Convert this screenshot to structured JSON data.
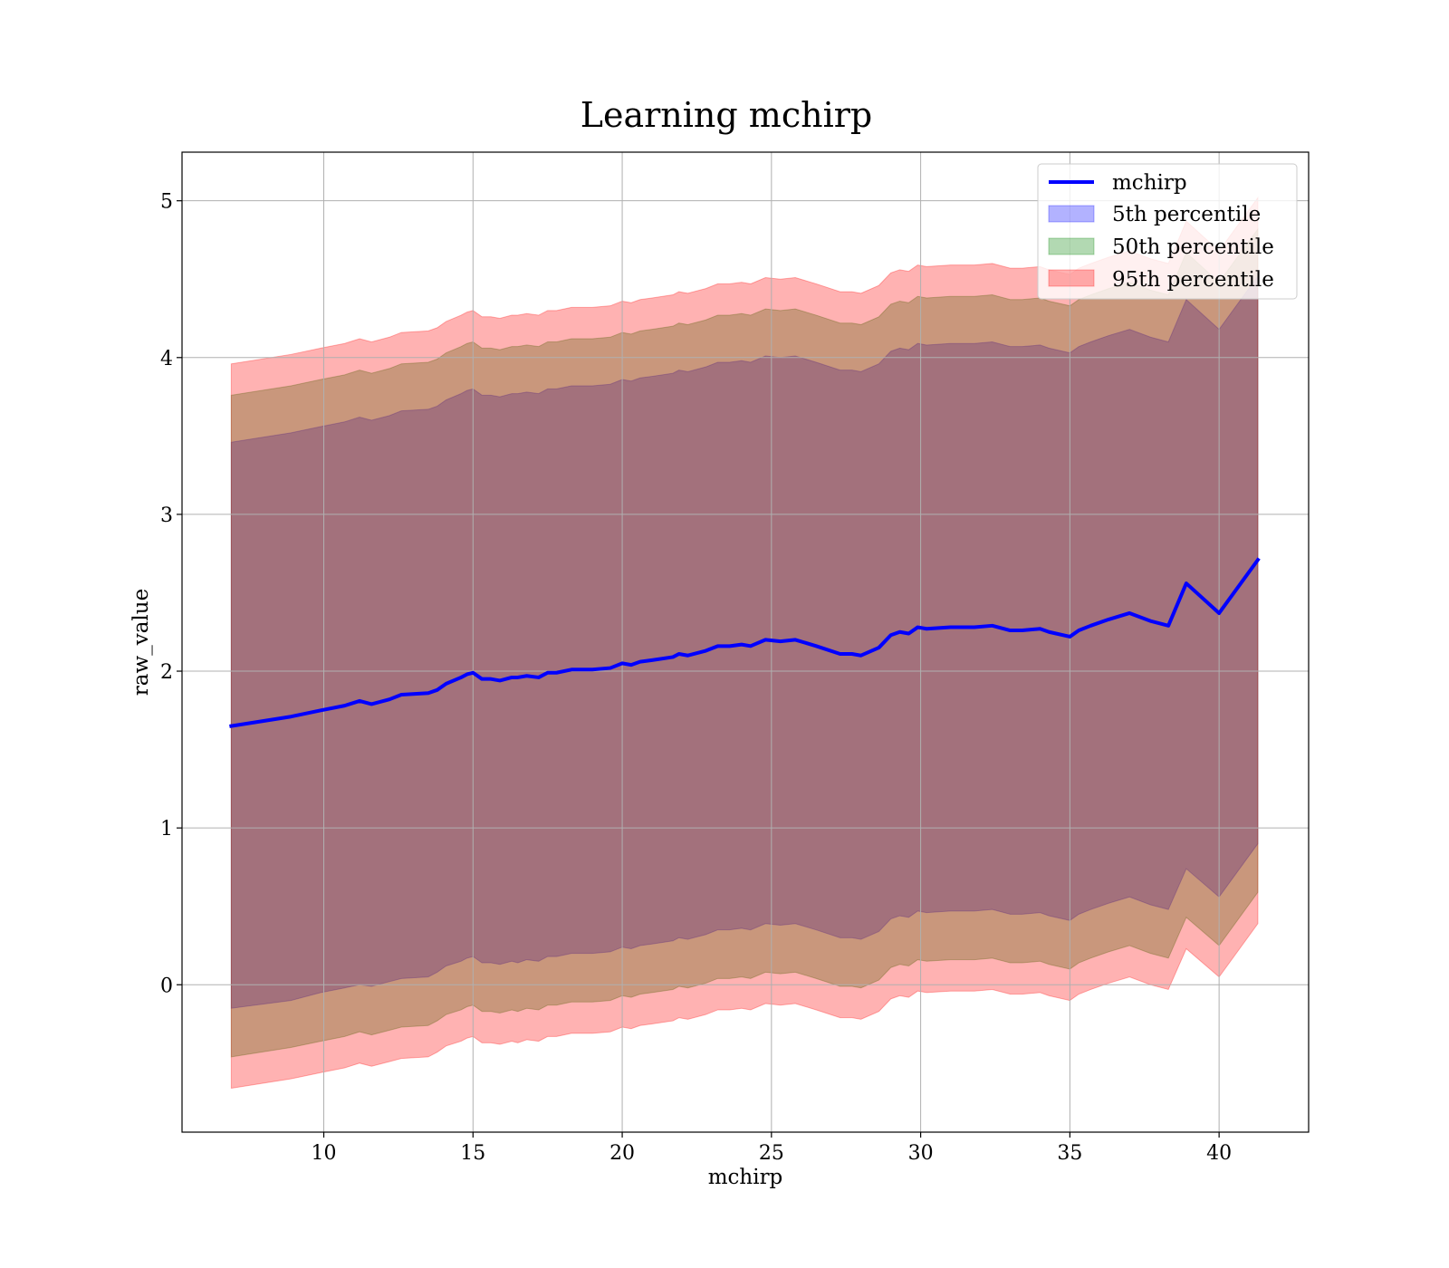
{
  "chart_data": {
    "type": "area",
    "title": "Learning mchirp",
    "xlabel": "mchirp",
    "ylabel": "raw_value",
    "xlim": [
      5.25,
      43.0
    ],
    "ylim": [
      -0.94,
      5.31
    ],
    "xticks": [
      10,
      15,
      20,
      25,
      30,
      35,
      40
    ],
    "yticks": [
      0,
      1,
      2,
      3,
      4,
      5
    ],
    "grid": true,
    "legend_position": "top-right",
    "legend": [
      "mchirp",
      "5th percentile",
      "50th percentile",
      "95th percentile"
    ],
    "colors": {
      "line": "#0000ff",
      "band_5th": "#0000ff",
      "band_50th": "#008000",
      "band_95th": "#ff0000"
    },
    "x": [
      6.9,
      8.9,
      9.9,
      10.7,
      11.2,
      11.6,
      12.2,
      12.6,
      13.5,
      13.8,
      14.1,
      14.6,
      14.8,
      15.0,
      15.3,
      15.6,
      15.9,
      16.3,
      16.5,
      16.8,
      17.2,
      17.5,
      17.8,
      18.3,
      19.0,
      19.6,
      20.0,
      20.3,
      20.6,
      21.0,
      21.7,
      21.9,
      22.2,
      22.8,
      23.2,
      23.6,
      24.0,
      24.3,
      24.8,
      25.3,
      25.8,
      26.5,
      27.3,
      27.7,
      28.0,
      28.6,
      29.0,
      29.3,
      29.6,
      29.9,
      30.2,
      31.0,
      31.8,
      32.4,
      33.0,
      33.4,
      34.0,
      34.3,
      35.0,
      35.3,
      35.7,
      36.3,
      37.0,
      37.7,
      38.3,
      38.9,
      40.0,
      41.3
    ],
    "series": [
      {
        "name": "mchirp",
        "kind": "line",
        "values": [
          1.65,
          1.71,
          1.75,
          1.78,
          1.81,
          1.79,
          1.82,
          1.85,
          1.86,
          1.88,
          1.92,
          1.96,
          1.98,
          1.99,
          1.95,
          1.95,
          1.94,
          1.96,
          1.96,
          1.97,
          1.96,
          1.99,
          1.99,
          2.01,
          2.01,
          2.02,
          2.05,
          2.04,
          2.06,
          2.07,
          2.09,
          2.11,
          2.1,
          2.13,
          2.16,
          2.16,
          2.17,
          2.16,
          2.2,
          2.19,
          2.2,
          2.16,
          2.11,
          2.11,
          2.1,
          2.15,
          2.23,
          2.25,
          2.24,
          2.28,
          2.27,
          2.28,
          2.28,
          2.29,
          2.26,
          2.26,
          2.27,
          2.25,
          2.22,
          2.26,
          2.29,
          2.33,
          2.37,
          2.32,
          2.29,
          2.56,
          2.37,
          2.71
        ]
      },
      {
        "name": "5th percentile",
        "kind": "band",
        "lower": [
          -0.15,
          -0.1,
          -0.05,
          -0.02,
          0.0,
          -0.01,
          0.02,
          0.04,
          0.05,
          0.08,
          0.12,
          0.15,
          0.17,
          0.18,
          0.14,
          0.14,
          0.13,
          0.15,
          0.14,
          0.16,
          0.15,
          0.18,
          0.18,
          0.2,
          0.2,
          0.21,
          0.24,
          0.23,
          0.25,
          0.26,
          0.28,
          0.3,
          0.29,
          0.32,
          0.35,
          0.35,
          0.36,
          0.35,
          0.39,
          0.38,
          0.39,
          0.35,
          0.3,
          0.3,
          0.29,
          0.34,
          0.42,
          0.44,
          0.43,
          0.47,
          0.46,
          0.47,
          0.47,
          0.48,
          0.45,
          0.45,
          0.46,
          0.44,
          0.41,
          0.45,
          0.48,
          0.52,
          0.56,
          0.51,
          0.48,
          0.74,
          0.56,
          0.9
        ],
        "upper": [
          3.46,
          3.52,
          3.56,
          3.59,
          3.62,
          3.6,
          3.63,
          3.66,
          3.67,
          3.69,
          3.73,
          3.77,
          3.79,
          3.8,
          3.76,
          3.76,
          3.75,
          3.77,
          3.77,
          3.78,
          3.77,
          3.8,
          3.8,
          3.82,
          3.82,
          3.83,
          3.86,
          3.85,
          3.87,
          3.88,
          3.9,
          3.92,
          3.91,
          3.94,
          3.97,
          3.97,
          3.98,
          3.97,
          4.01,
          4.0,
          4.01,
          3.97,
          3.92,
          3.92,
          3.91,
          3.96,
          4.04,
          4.06,
          4.05,
          4.09,
          4.08,
          4.09,
          4.09,
          4.1,
          4.07,
          4.07,
          4.08,
          4.06,
          4.03,
          4.07,
          4.1,
          4.14,
          4.18,
          4.13,
          4.1,
          4.37,
          4.18,
          4.52
        ]
      },
      {
        "name": "50th percentile",
        "kind": "band",
        "lower": [
          -0.46,
          -0.4,
          -0.36,
          -0.33,
          -0.3,
          -0.32,
          -0.29,
          -0.27,
          -0.26,
          -0.23,
          -0.19,
          -0.16,
          -0.14,
          -0.13,
          -0.17,
          -0.17,
          -0.18,
          -0.16,
          -0.17,
          -0.15,
          -0.16,
          -0.13,
          -0.13,
          -0.11,
          -0.11,
          -0.1,
          -0.07,
          -0.08,
          -0.06,
          -0.05,
          -0.03,
          -0.01,
          -0.02,
          0.01,
          0.04,
          0.04,
          0.05,
          0.04,
          0.08,
          0.07,
          0.08,
          0.04,
          -0.01,
          -0.01,
          -0.02,
          0.03,
          0.11,
          0.13,
          0.12,
          0.16,
          0.15,
          0.16,
          0.16,
          0.17,
          0.14,
          0.14,
          0.15,
          0.13,
          0.1,
          0.14,
          0.17,
          0.21,
          0.25,
          0.2,
          0.17,
          0.43,
          0.25,
          0.59
        ],
        "upper": [
          3.76,
          3.82,
          3.86,
          3.89,
          3.92,
          3.9,
          3.93,
          3.96,
          3.97,
          3.99,
          4.03,
          4.07,
          4.09,
          4.1,
          4.06,
          4.06,
          4.05,
          4.07,
          4.07,
          4.08,
          4.07,
          4.1,
          4.1,
          4.12,
          4.12,
          4.13,
          4.16,
          4.15,
          4.17,
          4.18,
          4.2,
          4.22,
          4.21,
          4.24,
          4.27,
          4.27,
          4.28,
          4.27,
          4.31,
          4.3,
          4.31,
          4.27,
          4.22,
          4.22,
          4.21,
          4.26,
          4.34,
          4.36,
          4.35,
          4.39,
          4.38,
          4.39,
          4.39,
          4.4,
          4.37,
          4.37,
          4.38,
          4.36,
          4.33,
          4.37,
          4.4,
          4.44,
          4.48,
          4.43,
          4.4,
          4.67,
          4.48,
          4.82
        ]
      },
      {
        "name": "95th percentile",
        "kind": "band",
        "lower": [
          -0.66,
          -0.6,
          -0.56,
          -0.53,
          -0.5,
          -0.52,
          -0.49,
          -0.47,
          -0.46,
          -0.43,
          -0.39,
          -0.36,
          -0.34,
          -0.33,
          -0.37,
          -0.37,
          -0.38,
          -0.36,
          -0.37,
          -0.35,
          -0.36,
          -0.33,
          -0.33,
          -0.31,
          -0.31,
          -0.3,
          -0.27,
          -0.28,
          -0.26,
          -0.25,
          -0.23,
          -0.21,
          -0.22,
          -0.19,
          -0.16,
          -0.16,
          -0.15,
          -0.16,
          -0.12,
          -0.13,
          -0.12,
          -0.16,
          -0.21,
          -0.21,
          -0.22,
          -0.17,
          -0.09,
          -0.07,
          -0.08,
          -0.04,
          -0.05,
          -0.04,
          -0.04,
          -0.03,
          -0.06,
          -0.06,
          -0.05,
          -0.07,
          -0.1,
          -0.06,
          -0.03,
          0.01,
          0.05,
          0.0,
          -0.03,
          0.23,
          0.05,
          0.39
        ],
        "upper": [
          3.96,
          4.02,
          4.06,
          4.09,
          4.12,
          4.1,
          4.13,
          4.16,
          4.17,
          4.19,
          4.23,
          4.27,
          4.29,
          4.3,
          4.26,
          4.26,
          4.25,
          4.27,
          4.27,
          4.28,
          4.27,
          4.3,
          4.3,
          4.32,
          4.32,
          4.33,
          4.36,
          4.35,
          4.37,
          4.38,
          4.4,
          4.42,
          4.41,
          4.44,
          4.47,
          4.47,
          4.48,
          4.47,
          4.51,
          4.5,
          4.51,
          4.47,
          4.42,
          4.42,
          4.41,
          4.46,
          4.54,
          4.56,
          4.55,
          4.59,
          4.58,
          4.59,
          4.59,
          4.6,
          4.57,
          4.57,
          4.58,
          4.56,
          4.53,
          4.57,
          4.6,
          4.64,
          4.68,
          4.63,
          4.6,
          4.87,
          4.68,
          5.02
        ]
      }
    ]
  }
}
